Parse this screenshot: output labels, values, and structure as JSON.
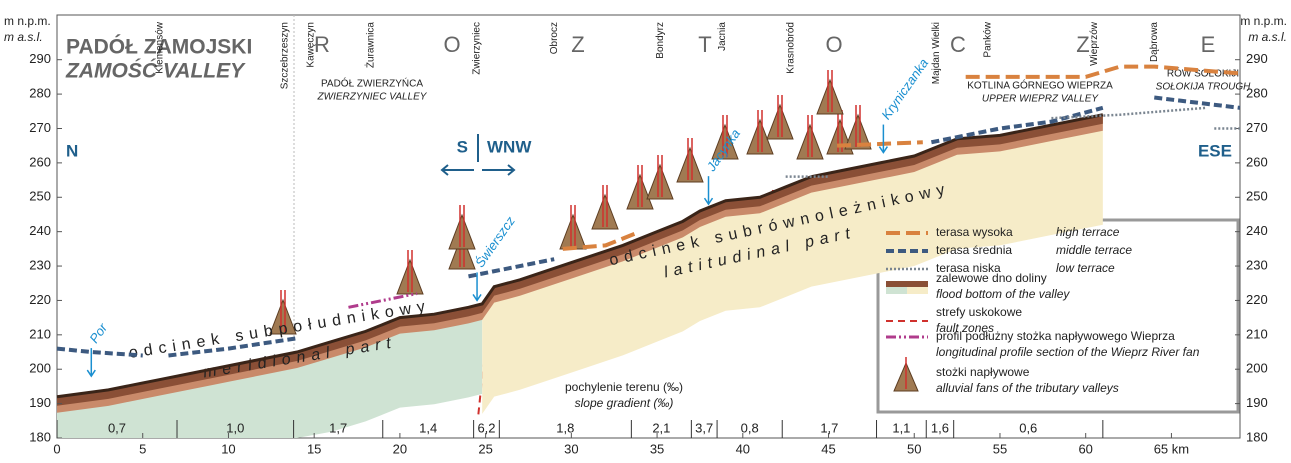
{
  "chart_data": {
    "type": "line",
    "y_unit": "m n.p.m.",
    "y_unit_en": "m a.s.l.",
    "region_letters": [
      "R",
      "O",
      "Z",
      "T",
      "O",
      "C",
      "Z",
      "E"
    ],
    "regions": [
      {
        "pl": "PADÓŁ ZAMOJSKI",
        "en": "ZAMOŚĆ VALLEY"
      },
      {
        "pl": "PADÓŁ ZWIERZYŃCA",
        "en": "ZWIERZYNIEC VALLEY"
      },
      {
        "pl": "KOTLINA GÓRNEGO WIEPRZA",
        "en": "UPPER WIEPRZ VALLEY"
      },
      {
        "pl": "RÓW SOŁOKIJI",
        "en": "SOŁOKIJA TROUGH"
      }
    ],
    "directions": [
      "N",
      "ESE",
      "S",
      "WNW"
    ],
    "parts": [
      {
        "pl": "odcinek subpołudnikowy",
        "en": "meridional part"
      },
      {
        "pl": "odcinek subrównoleżnikowy",
        "en": "latitudinal part"
      }
    ],
    "places": [
      {
        "name": "Klemensów",
        "km": 6
      },
      {
        "name": "Szczebrzeszyn",
        "km": 13.3
      },
      {
        "name": "Kawęczyn",
        "km": 14.8
      },
      {
        "name": "Żurawnica",
        "km": 18.3
      },
      {
        "name": "Zwierzyniec",
        "km": 24.5
      },
      {
        "name": "Obrocz",
        "km": 29
      },
      {
        "name": "Bondyrz",
        "km": 35.2
      },
      {
        "name": "Jacnia",
        "km": 38.8
      },
      {
        "name": "Krasnobród",
        "km": 42.8
      },
      {
        "name": "Majdan Wielki",
        "km": 51.3
      },
      {
        "name": "Panków",
        "km": 54.3
      },
      {
        "name": "Wieprzów",
        "km": 60.5
      },
      {
        "name": "Dąbrowa",
        "km": 64
      }
    ],
    "rivers": [
      {
        "name": "Por",
        "km": 2,
        "m": 198
      },
      {
        "name": "Świerszcz",
        "km": 24.5,
        "m": 220
      },
      {
        "name": "Jacynka",
        "km": 38,
        "m": 248
      },
      {
        "name": "Kryniczanka",
        "km": 48.2,
        "m": 263
      }
    ],
    "xlim": [
      0,
      69
    ],
    "ylim": [
      180,
      303
    ],
    "xticks": [
      0,
      5,
      10,
      15,
      20,
      25,
      30,
      35,
      40,
      45,
      50,
      55,
      60,
      {
        "value": 65,
        "label": "65 km"
      }
    ],
    "yticks": [
      180,
      190,
      200,
      210,
      220,
      230,
      240,
      250,
      260,
      270,
      280,
      290
    ],
    "slope_title": "pochylenie terenu (‰)",
    "slope_title_en": "slope gradient (‰)",
    "slope_breaks": [
      0,
      7,
      13.8,
      19,
      24.3,
      25.8,
      33.5,
      37,
      38.5,
      42.3,
      47.8,
      50.7,
      52.3,
      61
    ],
    "slope_labels": [
      "0,7",
      "1,0",
      "1,7",
      "1,4",
      "6,2",
      "1,8",
      "2,1",
      "3,7",
      "0,8",
      "1,7",
      "1,1",
      "1,6",
      "0,6"
    ],
    "series": [
      {
        "color": "#3a2418",
        "x": [
          0,
          3,
          6,
          9,
          12,
          14,
          16,
          18,
          20,
          22,
          24,
          24.8,
          25.5,
          27,
          30,
          33,
          35,
          36.5,
          37.5,
          39,
          41,
          42.5,
          44,
          46,
          48,
          50,
          51,
          52.5,
          55,
          58,
          61
        ],
        "values": [
          192,
          194,
          197,
          200,
          203,
          205,
          208,
          211,
          215,
          216,
          218,
          219,
          224,
          226,
          231,
          236,
          240,
          243,
          246,
          249,
          250,
          253,
          256,
          258,
          260,
          262,
          264,
          267,
          268,
          271,
          274
        ]
      },
      {
        "color": "#d9823f",
        "x": [
          29.5,
          32,
          34,
          null,
          45.5,
          50.5,
          null,
          53,
          60,
          62,
          64,
          69
        ],
        "values": [
          235,
          236,
          240,
          null,
          265,
          266,
          null,
          285,
          285,
          288,
          288,
          286
        ]
      },
      {
        "color": "#3d5a80",
        "x": [
          0,
          2,
          5,
          null,
          6.5,
          10,
          14,
          null,
          24,
          27,
          29,
          null,
          51,
          55,
          58,
          61,
          null,
          64,
          69
        ],
        "values": [
          206,
          205,
          204,
          null,
          204,
          206,
          209,
          null,
          227,
          230,
          232,
          null,
          266,
          270,
          272,
          276,
          null,
          279,
          276
        ]
      },
      {
        "color": "#7a8590",
        "x": [
          42.5,
          45,
          null,
          58,
          62,
          67,
          null,
          67.5,
          69
        ],
        "values": [
          256,
          256,
          null,
          273,
          274,
          276,
          null,
          270,
          270
        ]
      },
      {
        "color": "#b03c8c",
        "x": [
          17,
          21
        ],
        "values": [
          218,
          222
        ]
      }
    ],
    "legend": [
      {
        "pl": "terasa wysoka",
        "en": "high terrace"
      },
      {
        "pl": "terasa średnia",
        "en": "middle terrace"
      },
      {
        "pl": "terasa niska",
        "en": "low terrace"
      },
      {
        "pl": "zalewowe dno doliny",
        "en": "flood bottom of the valley"
      },
      {
        "pl": "strefy uskokowe",
        "en": "fault zones"
      },
      {
        "pl": "profil podłużny stożka napływowego Wieprza",
        "en": "longitudinal profile section of the Wieprz River fan"
      },
      {
        "pl": "stożki napływowe",
        "en": "alluvial fans of the tributary valleys"
      }
    ]
  }
}
